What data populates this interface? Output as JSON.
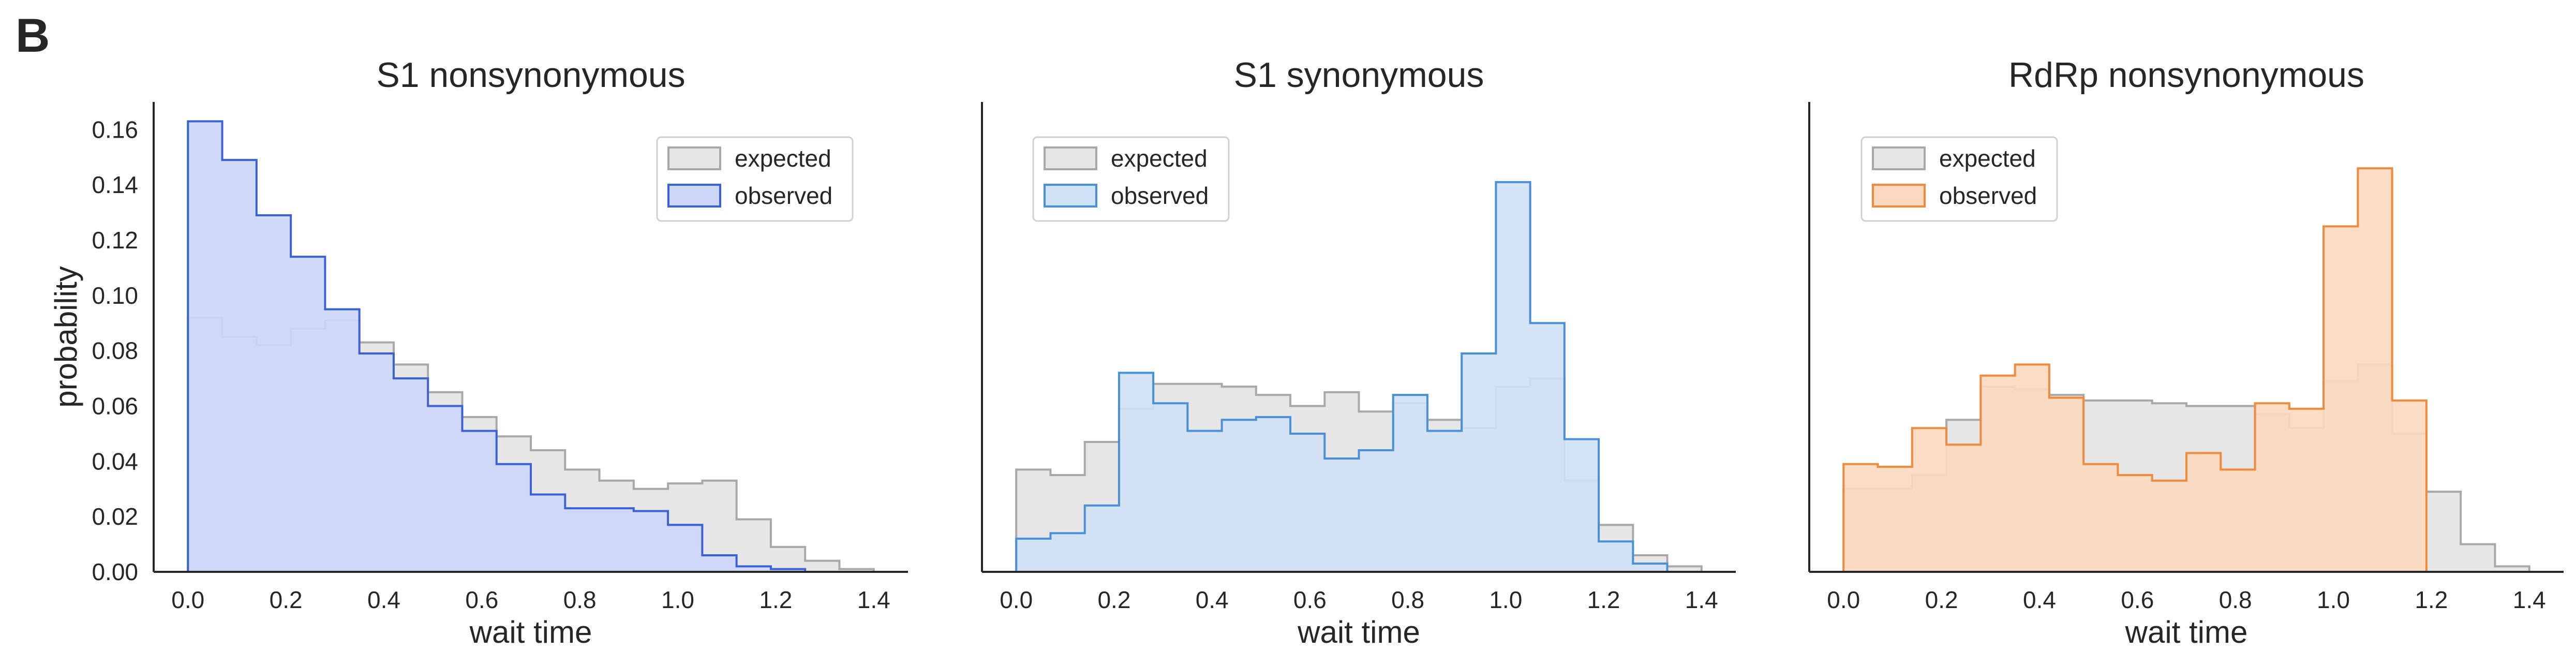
{
  "panel_letter": "B",
  "colors": {
    "expected_fill": "#e6e6e6",
    "expected_edge": "#a8a8a8",
    "axis": "#262626",
    "text": "#262626",
    "legend_border": "#d0d0d0"
  },
  "chart_data": [
    {
      "type": "histogram",
      "title": "S1 nonsynonymous",
      "xlabel": "wait time",
      "ylabel": "probability",
      "xlim": [
        -0.07,
        1.47
      ],
      "ylim": [
        0,
        0.17
      ],
      "xticks": [
        "0.0",
        "0.2",
        "0.4",
        "0.6",
        "0.8",
        "1.0",
        "1.2",
        "1.4"
      ],
      "yticks": [
        "0.00",
        "0.02",
        "0.04",
        "0.06",
        "0.08",
        "0.10",
        "0.12",
        "0.14",
        "0.16"
      ],
      "grid": false,
      "legend_position": "upper-right",
      "bin_edges": [
        0,
        0.07,
        0.14,
        0.21,
        0.28,
        0.35,
        0.42,
        0.49,
        0.56,
        0.63,
        0.7,
        0.77,
        0.84,
        0.91,
        0.98,
        1.05,
        1.12,
        1.19,
        1.26,
        1.33,
        1.4
      ],
      "series": [
        {
          "name": "expected",
          "fill": "#e6e6e6",
          "edge": "#a8a8a8",
          "values": [
            0.092,
            0.085,
            0.082,
            0.088,
            0.091,
            0.083,
            0.075,
            0.065,
            0.056,
            0.049,
            0.044,
            0.037,
            0.033,
            0.03,
            0.032,
            0.033,
            0.019,
            0.009,
            0.004,
            0.001
          ]
        },
        {
          "name": "observed",
          "fill": "#ccd6f7",
          "edge": "#3a62d6",
          "values": [
            0.163,
            0.149,
            0.129,
            0.114,
            0.095,
            0.079,
            0.07,
            0.06,
            0.051,
            0.039,
            0.028,
            0.023,
            0.023,
            0.022,
            0.017,
            0.006,
            0.002,
            0.001,
            0.0,
            0.0
          ]
        }
      ]
    },
    {
      "type": "histogram",
      "title": "S1 synonymous",
      "xlabel": "wait time",
      "ylabel": "",
      "xlim": [
        -0.07,
        1.47
      ],
      "ylim": [
        0,
        0.17
      ],
      "xticks": [
        "0.0",
        "0.2",
        "0.4",
        "0.6",
        "0.8",
        "1.0",
        "1.2",
        "1.4"
      ],
      "yticks": [],
      "grid": false,
      "legend_position": "upper-left",
      "bin_edges": [
        0,
        0.07,
        0.14,
        0.21,
        0.28,
        0.35,
        0.42,
        0.49,
        0.56,
        0.63,
        0.7,
        0.77,
        0.84,
        0.91,
        0.98,
        1.05,
        1.12,
        1.19,
        1.26,
        1.33,
        1.4
      ],
      "series": [
        {
          "name": "expected",
          "fill": "#e6e6e6",
          "edge": "#a8a8a8",
          "values": [
            0.037,
            0.035,
            0.047,
            0.059,
            0.068,
            0.068,
            0.067,
            0.064,
            0.06,
            0.065,
            0.058,
            0.061,
            0.055,
            0.052,
            0.067,
            0.07,
            0.033,
            0.017,
            0.006,
            0.002
          ]
        },
        {
          "name": "observed",
          "fill": "#cfe1f5",
          "edge": "#4a90d9",
          "values": [
            0.012,
            0.014,
            0.024,
            0.072,
            0.061,
            0.051,
            0.055,
            0.056,
            0.05,
            0.041,
            0.044,
            0.064,
            0.051,
            0.079,
            0.141,
            0.09,
            0.048,
            0.011,
            0.003,
            0.0
          ]
        }
      ]
    },
    {
      "type": "histogram",
      "title": "RdRp nonsynonymous",
      "xlabel": "wait time",
      "ylabel": "",
      "xlim": [
        -0.07,
        1.47
      ],
      "ylim": [
        0,
        0.17
      ],
      "xticks": [
        "0.0",
        "0.2",
        "0.4",
        "0.6",
        "0.8",
        "1.0",
        "1.2",
        "1.4"
      ],
      "yticks": [],
      "grid": false,
      "legend_position": "upper-left",
      "bin_edges": [
        0,
        0.07,
        0.14,
        0.21,
        0.28,
        0.35,
        0.42,
        0.49,
        0.56,
        0.63,
        0.7,
        0.77,
        0.84,
        0.91,
        0.98,
        1.05,
        1.12,
        1.19,
        1.26,
        1.33,
        1.4
      ],
      "series": [
        {
          "name": "expected",
          "fill": "#e6e6e6",
          "edge": "#a8a8a8",
          "values": [
            0.03,
            0.03,
            0.035,
            0.055,
            0.067,
            0.066,
            0.064,
            0.062,
            0.062,
            0.061,
            0.06,
            0.06,
            0.057,
            0.052,
            0.069,
            0.075,
            0.05,
            0.029,
            0.01,
            0.002
          ]
        },
        {
          "name": "observed",
          "fill": "#fbd8bf",
          "edge": "#f08a3c",
          "values": [
            0.039,
            0.038,
            0.052,
            0.046,
            0.071,
            0.075,
            0.063,
            0.039,
            0.035,
            0.033,
            0.043,
            0.037,
            0.061,
            0.059,
            0.125,
            0.146,
            0.062,
            0.0,
            0.0,
            0.0
          ]
        }
      ]
    }
  ]
}
